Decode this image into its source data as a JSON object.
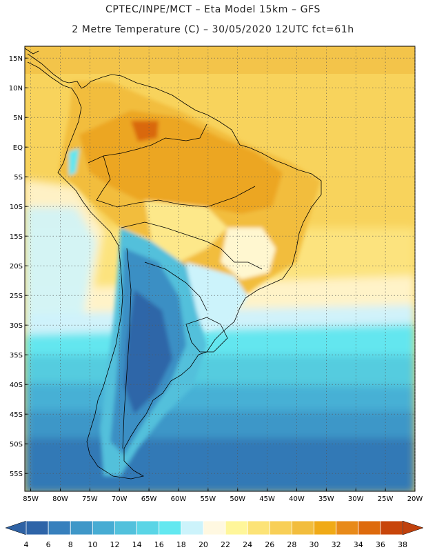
{
  "title": {
    "line1": "CPTEC/INPE/MCT –  Eta Model 15km – GFS",
    "line2": "2 Metre Temperature (C) – 30/05/2020 12UTC fct=61h"
  },
  "map": {
    "lon_range": [
      -86,
      -20
    ],
    "lat_range": [
      -58,
      17
    ],
    "lat_ticks": [
      {
        "value": 15,
        "label": "15N"
      },
      {
        "value": 10,
        "label": "10N"
      },
      {
        "value": 5,
        "label": "5N"
      },
      {
        "value": 0,
        "label": "EQ"
      },
      {
        "value": -5,
        "label": "5S"
      },
      {
        "value": -10,
        "label": "10S"
      },
      {
        "value": -15,
        "label": "15S"
      },
      {
        "value": -20,
        "label": "20S"
      },
      {
        "value": -25,
        "label": "25S"
      },
      {
        "value": -30,
        "label": "30S"
      },
      {
        "value": -35,
        "label": "35S"
      },
      {
        "value": -40,
        "label": "40S"
      },
      {
        "value": -45,
        "label": "45S"
      },
      {
        "value": -50,
        "label": "50S"
      },
      {
        "value": -55,
        "label": "55S"
      }
    ],
    "lon_ticks": [
      {
        "value": -85,
        "label": "85W"
      },
      {
        "value": -80,
        "label": "80W"
      },
      {
        "value": -75,
        "label": "75W"
      },
      {
        "value": -70,
        "label": "70W"
      },
      {
        "value": -65,
        "label": "65W"
      },
      {
        "value": -60,
        "label": "60W"
      },
      {
        "value": -55,
        "label": "55W"
      },
      {
        "value": -50,
        "label": "50W"
      },
      {
        "value": -45,
        "label": "45W"
      },
      {
        "value": -40,
        "label": "40W"
      },
      {
        "value": -35,
        "label": "35W"
      },
      {
        "value": -30,
        "label": "30W"
      },
      {
        "value": -25,
        "label": "25W"
      },
      {
        "value": -20,
        "label": "20W"
      }
    ]
  },
  "colorbar": {
    "labels": [
      "4",
      "6",
      "8",
      "10",
      "12",
      "14",
      "16",
      "18",
      "20",
      "22",
      "24",
      "26",
      "28",
      "30",
      "32",
      "34",
      "36",
      "38"
    ],
    "colors": [
      "#2e64a8",
      "#3780bd",
      "#3f97c8",
      "#47acd3",
      "#52c1dc",
      "#5ad5e6",
      "#63e8f0",
      "#ccf3fb",
      "#fff8e1",
      "#fff69a",
      "#fce377",
      "#f8cf57",
      "#f2bd3d",
      "#f0aa17",
      "#e88a1a",
      "#de6a0c",
      "#c8450a"
    ],
    "under_color": "#2f62a4",
    "over_color": "#c0410d"
  }
}
